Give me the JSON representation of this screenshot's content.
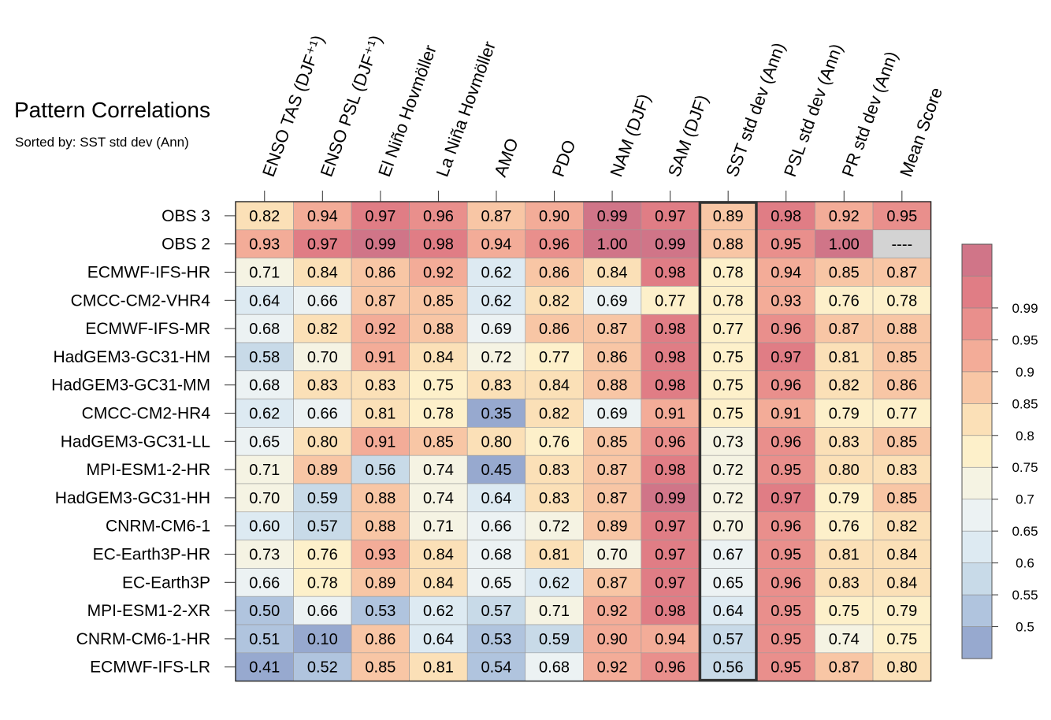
{
  "title": "Pattern Correlations",
  "subtitle": "Sorted by: SST std dev (Ann)",
  "chart_data": {
    "type": "heatmap",
    "title": "Pattern Correlations",
    "subtitle": "Sorted by: SST std dev (Ann)",
    "columns": [
      "ENSO TAS (DJF⁺¹)",
      "ENSO PSL (DJF⁺¹)",
      "El Niño Hovmöller",
      "La Niña Hovmöller",
      "AMO",
      "PDO",
      "NAM (DJF)",
      "SAM (DJF)",
      "SST std dev (Ann)",
      "PSL std dev (Ann)",
      "PR std dev (Ann)",
      "Mean Score"
    ],
    "rows": [
      "OBS 3",
      "OBS 2",
      "ECMWF-IFS-HR",
      "CMCC-CM2-VHR4",
      "ECMWF-IFS-MR",
      "HadGEM3-GC31-HM",
      "HadGEM3-GC31-MM",
      "CMCC-CM2-HR4",
      "HadGEM3-GC31-LL",
      "MPI-ESM1-2-HR",
      "HadGEM3-GC31-HH",
      "CNRM-CM6-1",
      "EC-Earth3P-HR",
      "EC-Earth3P",
      "MPI-ESM1-2-XR",
      "CNRM-CM6-1-HR",
      "ECMWF-IFS-LR"
    ],
    "values": [
      [
        0.82,
        0.94,
        0.97,
        0.96,
        0.87,
        0.9,
        0.99,
        0.97,
        0.89,
        0.98,
        0.92,
        0.95
      ],
      [
        0.93,
        0.97,
        0.99,
        0.98,
        0.94,
        0.96,
        1.0,
        0.99,
        0.88,
        0.95,
        1.0,
        null
      ],
      [
        0.71,
        0.84,
        0.86,
        0.92,
        0.62,
        0.86,
        0.84,
        0.98,
        0.78,
        0.94,
        0.85,
        0.87
      ],
      [
        0.64,
        0.66,
        0.87,
        0.85,
        0.62,
        0.82,
        0.69,
        0.77,
        0.78,
        0.93,
        0.76,
        0.78
      ],
      [
        0.68,
        0.82,
        0.92,
        0.88,
        0.69,
        0.86,
        0.87,
        0.98,
        0.77,
        0.96,
        0.87,
        0.88
      ],
      [
        0.58,
        0.7,
        0.91,
        0.84,
        0.72,
        0.77,
        0.86,
        0.98,
        0.75,
        0.97,
        0.81,
        0.85
      ],
      [
        0.68,
        0.83,
        0.83,
        0.75,
        0.83,
        0.84,
        0.88,
        0.98,
        0.75,
        0.96,
        0.82,
        0.86
      ],
      [
        0.62,
        0.66,
        0.81,
        0.78,
        0.35,
        0.82,
        0.69,
        0.91,
        0.75,
        0.91,
        0.79,
        0.77
      ],
      [
        0.65,
        0.8,
        0.91,
        0.85,
        0.8,
        0.76,
        0.85,
        0.96,
        0.73,
        0.96,
        0.83,
        0.85
      ],
      [
        0.71,
        0.89,
        0.56,
        0.74,
        0.45,
        0.83,
        0.87,
        0.98,
        0.72,
        0.95,
        0.8,
        0.83
      ],
      [
        0.7,
        0.59,
        0.88,
        0.74,
        0.64,
        0.83,
        0.87,
        0.99,
        0.72,
        0.97,
        0.79,
        0.85
      ],
      [
        0.6,
        0.57,
        0.88,
        0.71,
        0.66,
        0.72,
        0.89,
        0.97,
        0.7,
        0.96,
        0.76,
        0.82
      ],
      [
        0.73,
        0.76,
        0.93,
        0.84,
        0.68,
        0.81,
        0.7,
        0.97,
        0.67,
        0.95,
        0.81,
        0.84
      ],
      [
        0.66,
        0.78,
        0.89,
        0.84,
        0.65,
        0.62,
        0.87,
        0.97,
        0.65,
        0.96,
        0.83,
        0.84
      ],
      [
        0.5,
        0.66,
        0.53,
        0.62,
        0.57,
        0.71,
        0.92,
        0.98,
        0.64,
        0.95,
        0.75,
        0.79
      ],
      [
        0.51,
        0.1,
        0.86,
        0.64,
        0.53,
        0.59,
        0.9,
        0.94,
        0.57,
        0.95,
        0.74,
        0.75
      ],
      [
        0.41,
        0.52,
        0.85,
        0.81,
        0.54,
        0.68,
        0.92,
        0.96,
        0.56,
        0.95,
        0.87,
        0.8
      ]
    ],
    "missing_label": "----",
    "highlight_column": "SST std dev (Ann)",
    "colorbar": {
      "ticks": [
        "0.5",
        "0.55",
        "0.6",
        "0.65",
        "0.7",
        "0.75",
        "0.8",
        "0.85",
        "0.9",
        "0.95",
        "0.99"
      ],
      "levels": [
        0.5,
        0.55,
        0.6,
        0.65,
        0.7,
        0.75,
        0.8,
        0.85,
        0.9,
        0.95,
        0.97,
        0.99
      ],
      "colors": [
        "#97a9cf",
        "#b0c4de",
        "#c8dae8",
        "#ddeaf2",
        "#ecf2f3",
        "#f5f3e3",
        "#fdf0ca",
        "#fbe0b7",
        "#f8c6a5",
        "#f3ac98",
        "#e98f8c",
        "#e07d85",
        "#d07588"
      ],
      "missing_color": "#d3d3d3"
    }
  }
}
